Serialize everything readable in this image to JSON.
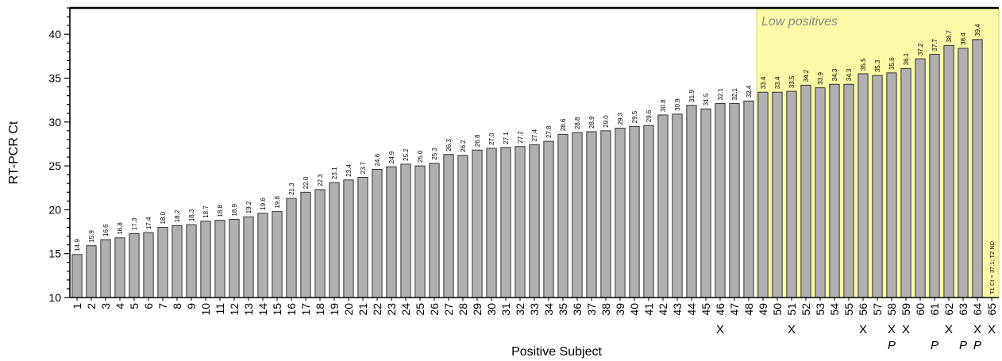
{
  "chart_data": {
    "type": "bar",
    "title": "",
    "xlabel": "Positive Subject",
    "ylabel": "RT-PCR Ct",
    "ylim": [
      10,
      43
    ],
    "yticks": [
      10,
      15,
      20,
      25,
      30,
      35,
      40
    ],
    "bar_color": "#b0b0b0",
    "highlight_color": "#fafaa8",
    "categories": [
      "1",
      "2",
      "3",
      "4",
      "5",
      "6",
      "7",
      "8",
      "9",
      "10",
      "11",
      "12",
      "13",
      "14",
      "15",
      "16",
      "17",
      "18",
      "19",
      "20",
      "21",
      "22",
      "23",
      "24",
      "25",
      "26",
      "27",
      "28",
      "29",
      "30",
      "31",
      "32",
      "33",
      "34",
      "35",
      "36",
      "37",
      "38",
      "39",
      "40",
      "41",
      "42",
      "43",
      "44",
      "45",
      "46",
      "47",
      "48",
      "49",
      "50",
      "51",
      "52",
      "53",
      "54",
      "55",
      "56",
      "57",
      "58",
      "59",
      "60",
      "61",
      "62",
      "63",
      "64",
      "65"
    ],
    "values": [
      14.9,
      15.9,
      16.6,
      16.8,
      17.3,
      17.4,
      18.0,
      18.2,
      18.3,
      18.7,
      18.8,
      18.9,
      19.2,
      19.6,
      19.8,
      21.3,
      22.0,
      22.3,
      23.1,
      23.4,
      23.7,
      24.6,
      24.9,
      25.2,
      25.0,
      25.3,
      26.3,
      26.2,
      26.8,
      27.0,
      27.1,
      27.2,
      27.4,
      27.8,
      28.6,
      28.8,
      28.9,
      29.0,
      29.3,
      29.5,
      29.6,
      30.8,
      30.9,
      31.9,
      31.5,
      32.1,
      32.1,
      32.4,
      33.4,
      33.4,
      33.5,
      34.2,
      33.9,
      34.3,
      34.3,
      35.5,
      35.3,
      35.6,
      36.1,
      37.2,
      37.7,
      38.7,
      38.4,
      39.4,
      null
    ],
    "value_labels": [
      "14.9",
      "15.9",
      "16.6",
      "16.8",
      "17.3",
      "17.4",
      "18.0",
      "18.2",
      "18.3",
      "18.7",
      "18.8",
      "18.9",
      "19.2",
      "19.6",
      "19.8",
      "21.3",
      "22.0",
      "22.3",
      "23.1",
      "23.4",
      "23.7",
      "24.6",
      "24.9",
      "25.2",
      "25.0",
      "25.3",
      "26.3",
      "26.2",
      "26.8",
      "27.0",
      "27.1",
      "27.2",
      "27.4",
      "27.8",
      "28.6",
      "28.8",
      "28.9",
      "29.0",
      "29.3",
      "29.5",
      "29.6",
      "30.8",
      "30.9",
      "31.9",
      "31.5",
      "32.1",
      "32.1",
      "32.4",
      "33.4",
      "33.4",
      "33.5",
      "34.2",
      "33.9",
      "34.3",
      "34.3",
      "35.5",
      "35.3",
      "35.6",
      "36.1",
      "37.2",
      "37.7",
      "38.7",
      "38.4",
      "39.4",
      ""
    ],
    "x_marked_subjects": [
      "46",
      "51",
      "56",
      "58",
      "59",
      "62",
      "64",
      "65"
    ],
    "x_marker": "X",
    "p_marked_subjects": [
      "58",
      "61",
      "63",
      "64"
    ],
    "p_marker": "P",
    "highlight_region": {
      "label": "Low positives",
      "from_category": "49",
      "to_category": "65"
    },
    "annotation": "T1 Ct = 37.1; T2 ND",
    "grid": false
  }
}
